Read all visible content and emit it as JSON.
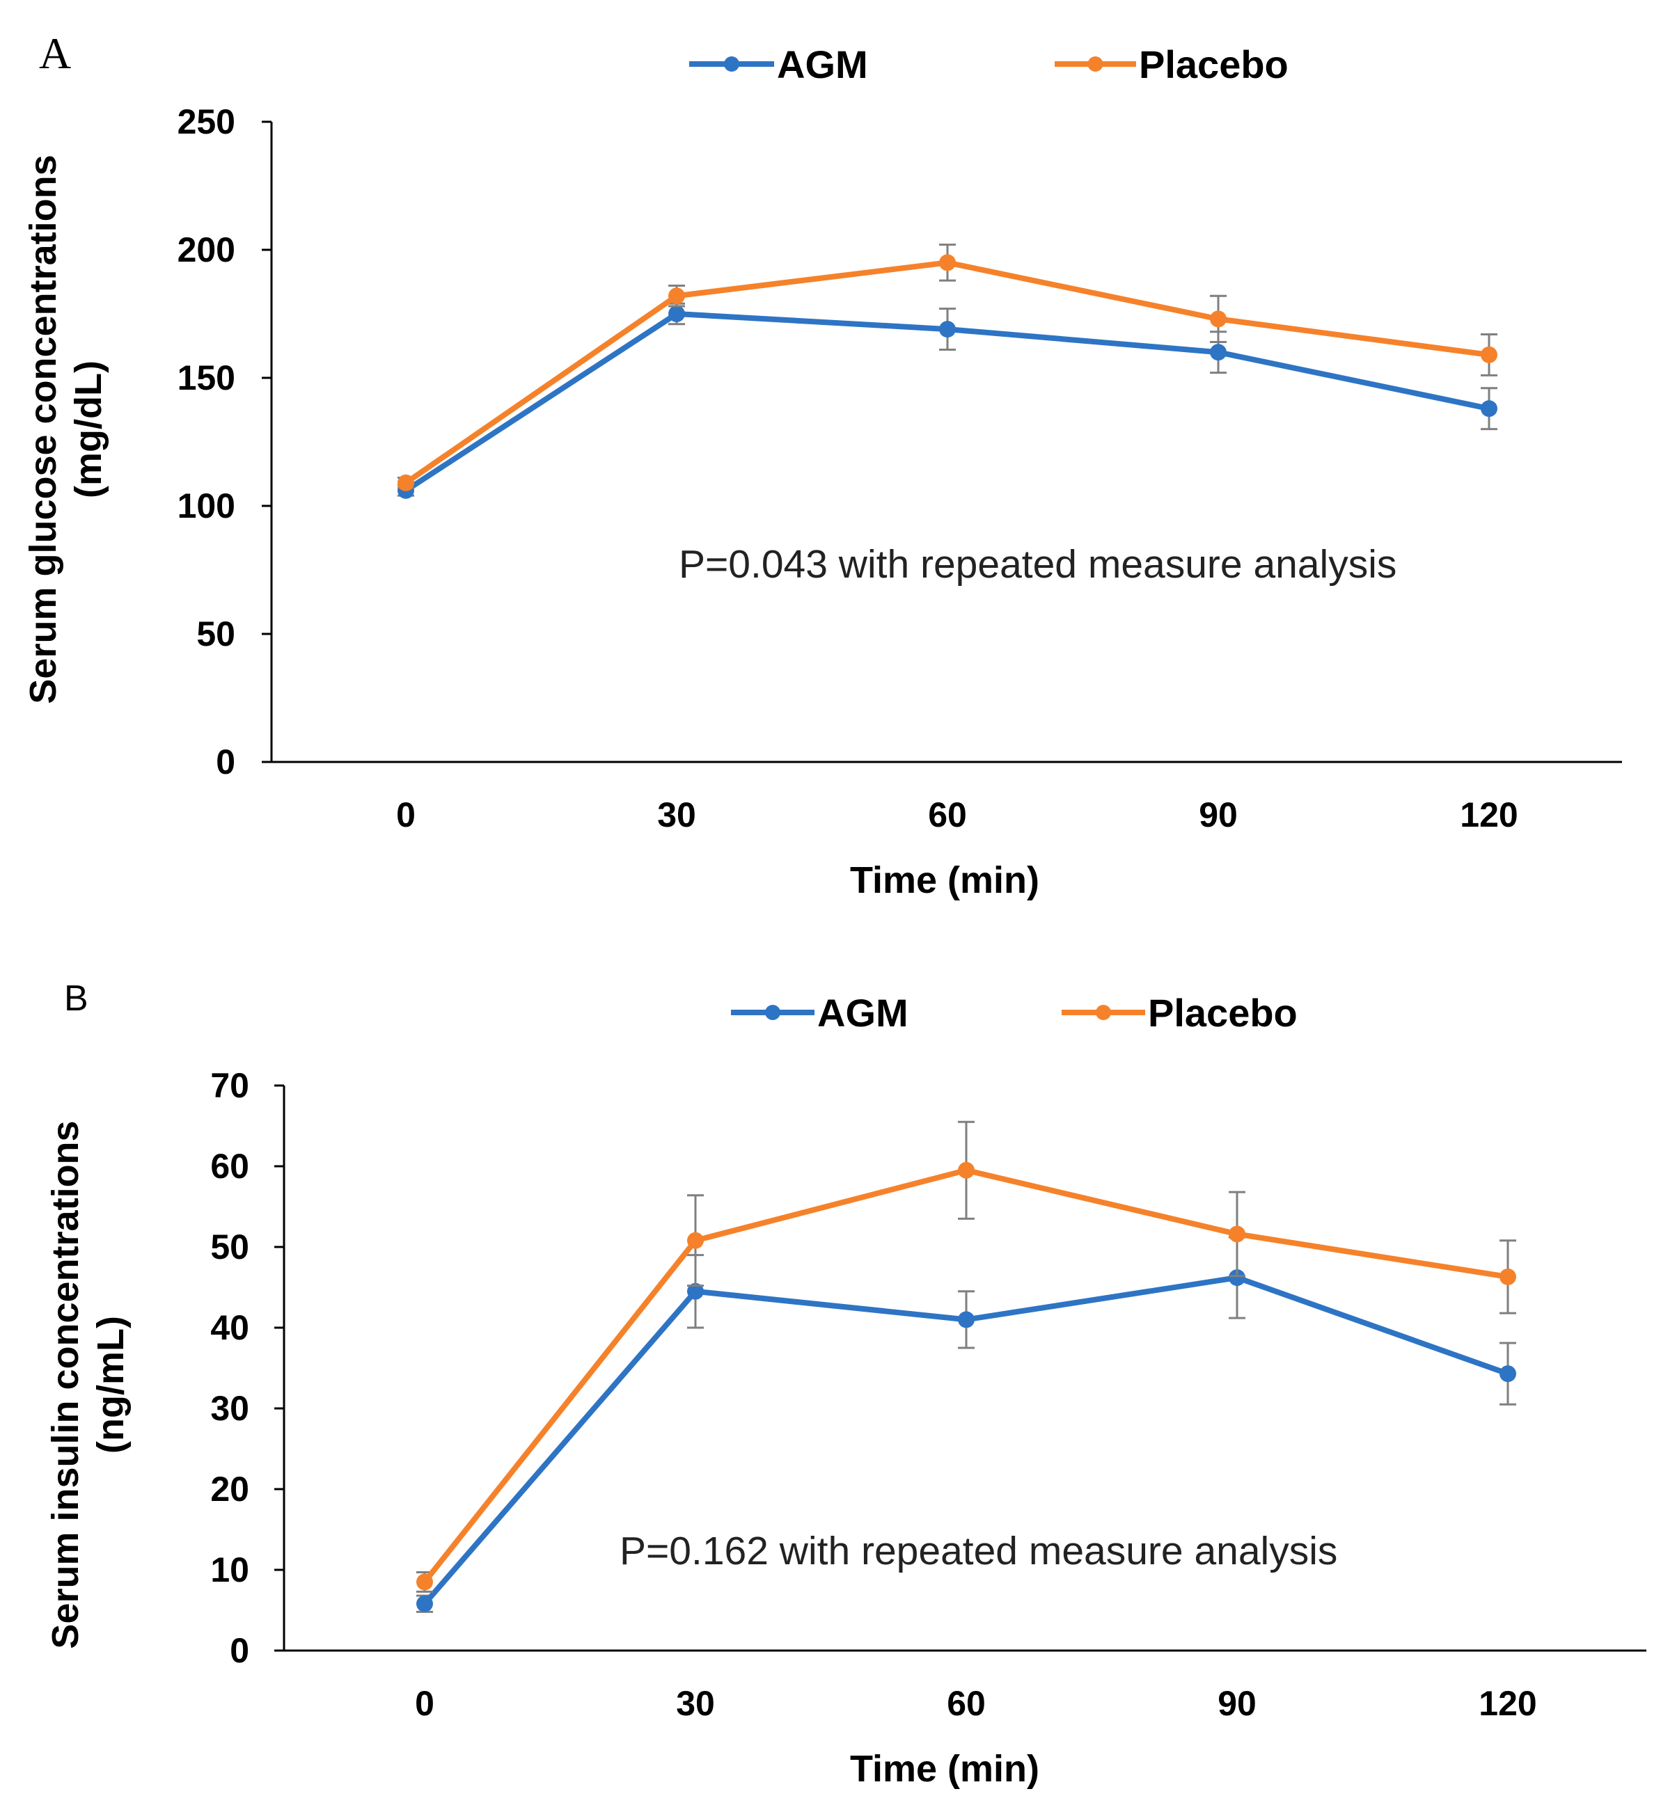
{
  "chart_data": [
    {
      "panel": "A",
      "type": "line",
      "title": "",
      "x": [
        0,
        30,
        60,
        90,
        120
      ],
      "xlabel": "Time (min)",
      "ylabel_lines": [
        "Serum glucose concentrations",
        "(mg/dL)"
      ],
      "ylim": [
        0,
        250
      ],
      "yticks": [
        0,
        50,
        100,
        150,
        200,
        250
      ],
      "grid": false,
      "legend_position": "top-center",
      "annotation": "P=0.043 with repeated measure analysis",
      "series": [
        {
          "name": "AGM",
          "color": "#2E74C4",
          "values": [
            106,
            175,
            169,
            160,
            138
          ],
          "errors": [
            2,
            4,
            8,
            8,
            8
          ]
        },
        {
          "name": "Placebo",
          "color": "#F5822A",
          "values": [
            109,
            182,
            195,
            173,
            159
          ],
          "errors": [
            2,
            4,
            7,
            9,
            8
          ]
        }
      ]
    },
    {
      "panel": "B",
      "type": "line",
      "title": "",
      "x": [
        0,
        30,
        60,
        90,
        120
      ],
      "xlabel": "Time (min)",
      "ylabel_lines": [
        "Serum insulin concentrations",
        "(ng/mL)"
      ],
      "ylim": [
        0,
        70
      ],
      "yticks": [
        0,
        10,
        20,
        30,
        40,
        50,
        60,
        70
      ],
      "grid": false,
      "legend_position": "top-center",
      "annotation": "P=0.162 with repeated measure analysis",
      "series": [
        {
          "name": "AGM",
          "color": "#2E74C4",
          "values": [
            5.8,
            44.5,
            41,
            46.2,
            34.3
          ],
          "errors": [
            1,
            4.5,
            3.5,
            5,
            3.8
          ]
        },
        {
          "name": "Placebo",
          "color": "#F5822A",
          "values": [
            8.5,
            50.8,
            59.5,
            51.6,
            46.3
          ],
          "errors": [
            1.2,
            5.6,
            6,
            5.2,
            4.5
          ]
        }
      ]
    }
  ]
}
